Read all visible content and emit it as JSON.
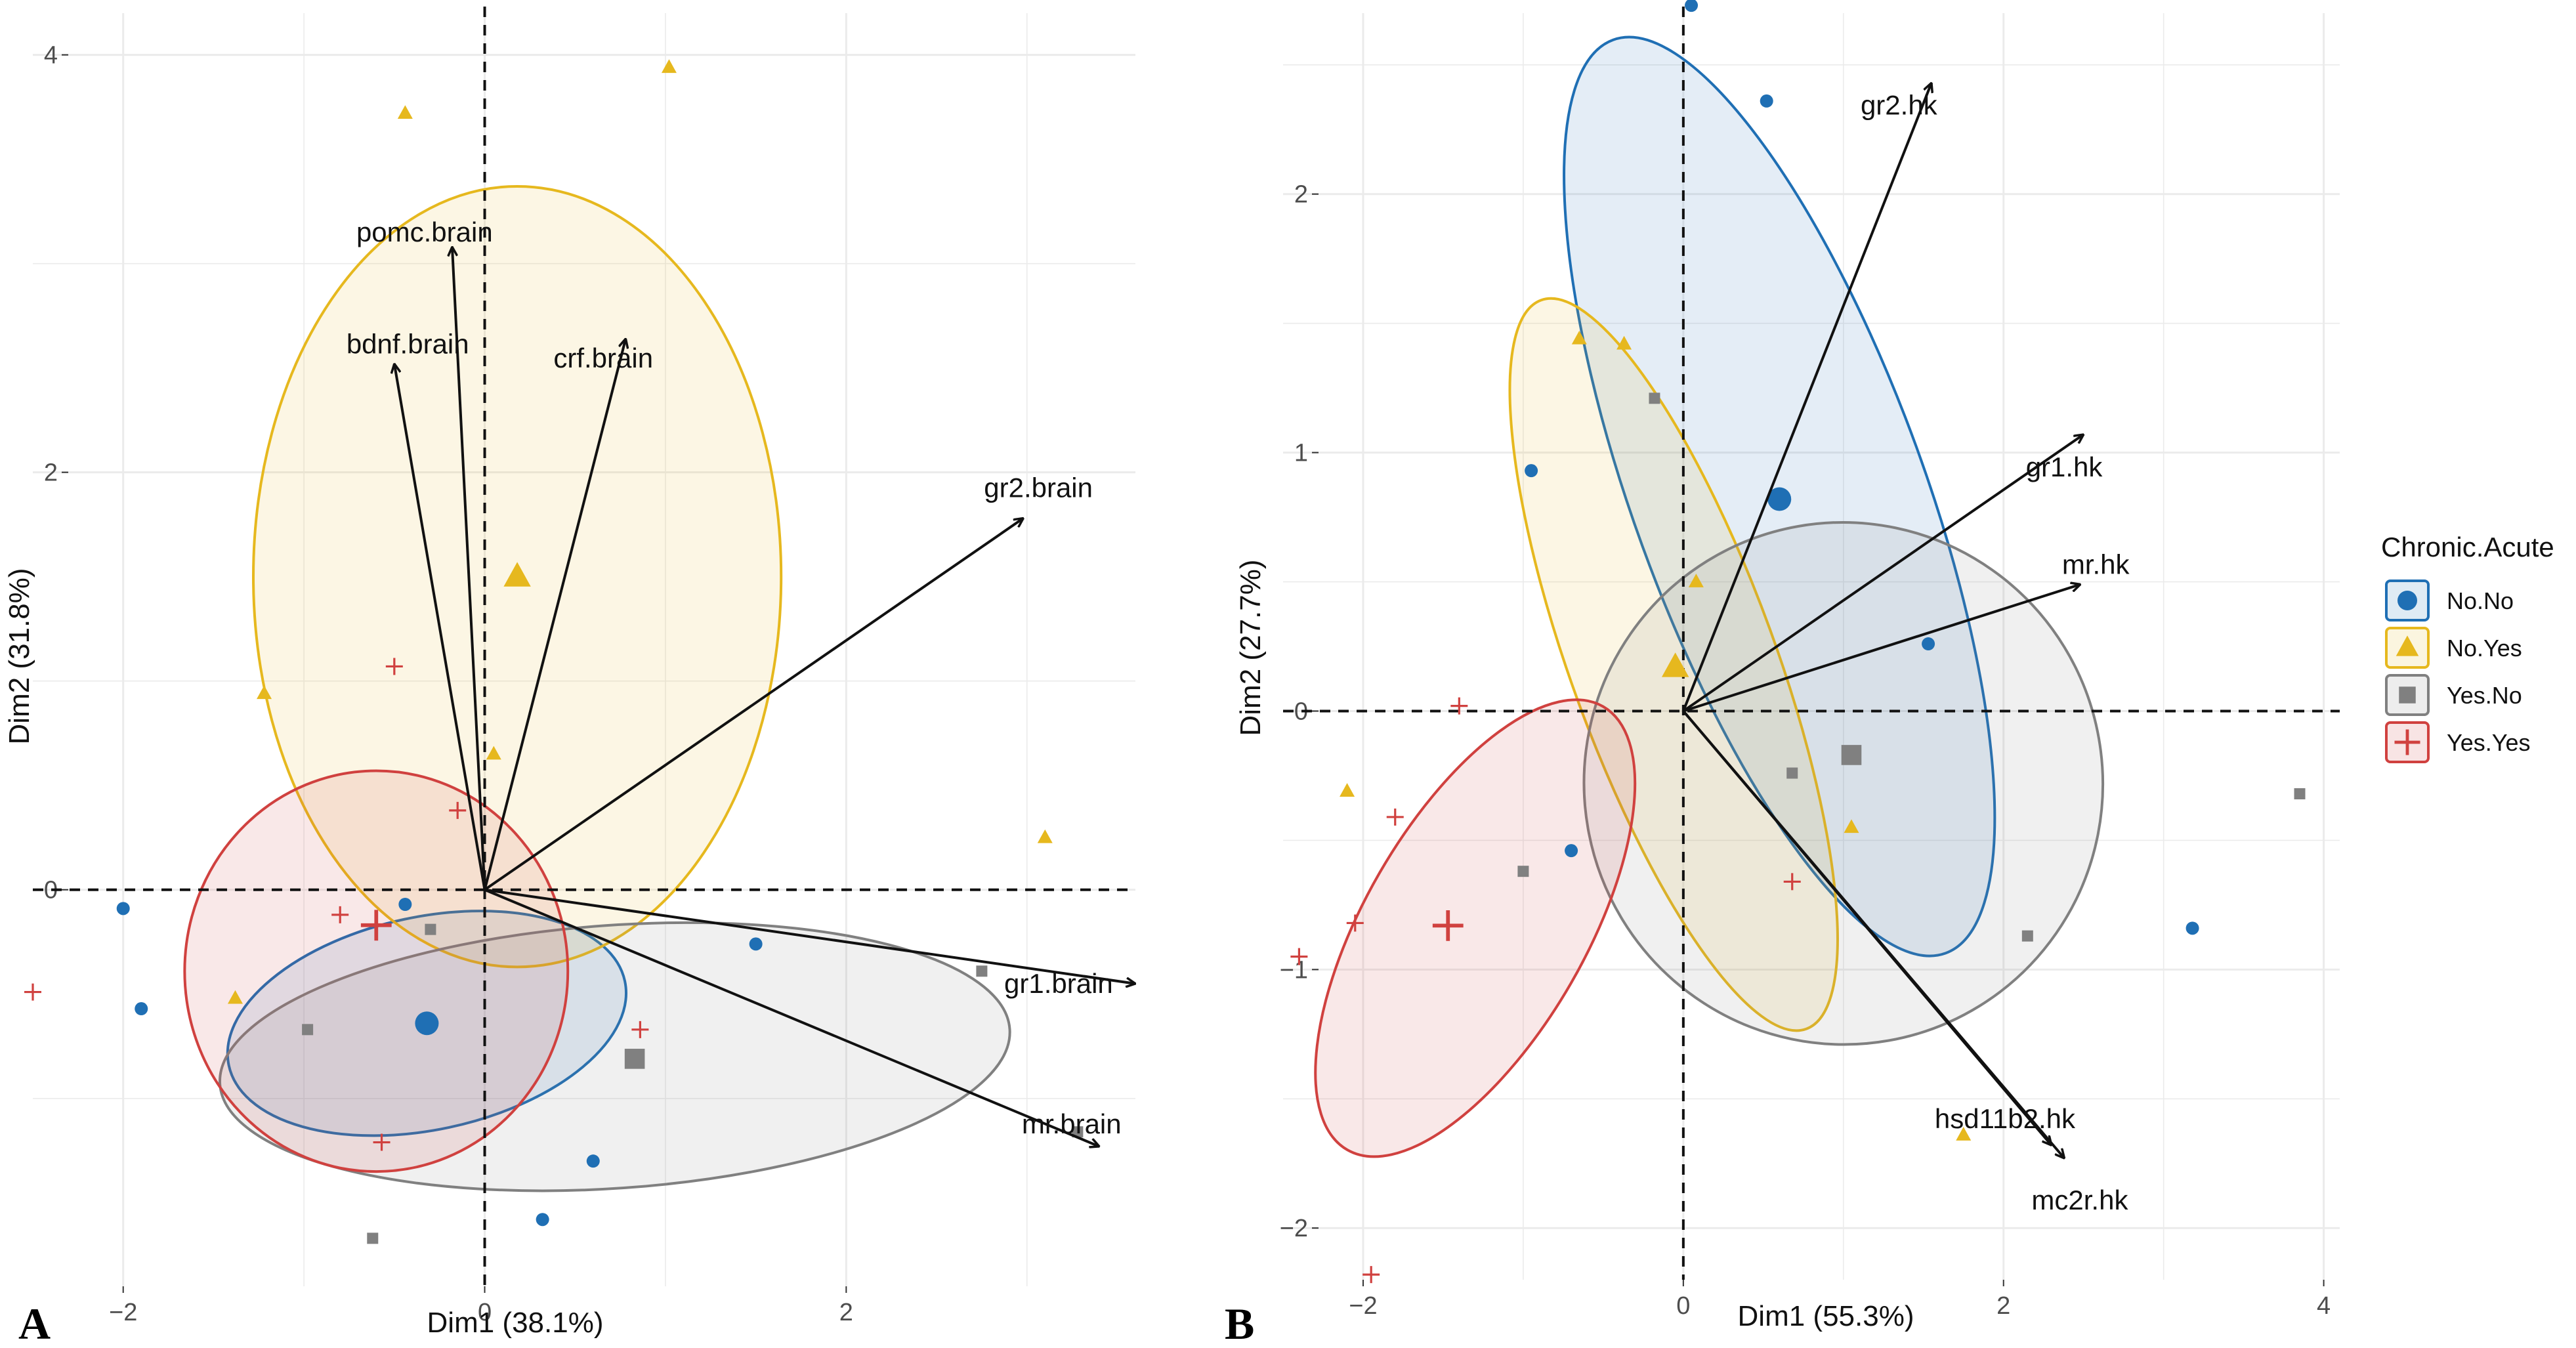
{
  "colors": {
    "No.No": "#1f6fb4",
    "No.Yes": "#e6b81e",
    "Yes.No": "#808080",
    "Yes.Yes": "#d0413f",
    "grid": "#ebebeb",
    "arrow": "#111111"
  },
  "legend": {
    "title": "Chronic.Acute",
    "items": [
      {
        "group": "No.No",
        "label": "No.No",
        "shape": "circle"
      },
      {
        "group": "No.Yes",
        "label": "No.Yes",
        "shape": "triangle"
      },
      {
        "group": "Yes.No",
        "label": "Yes.No",
        "shape": "square"
      },
      {
        "group": "Yes.Yes",
        "label": "Yes.Yes",
        "shape": "plus"
      }
    ]
  },
  "chart_data": [
    {
      "type": "scatter",
      "subtype": "pca-biplot",
      "panel": "A",
      "xlabel": "Dim1 (38.1%)",
      "ylabel": "Dim2 (31.8%)",
      "xlim": [
        -2.5,
        3.6
      ],
      "ylim": [
        -1.9,
        4.2
      ],
      "xticks": [
        -2,
        0,
        2
      ],
      "yticks": [
        0,
        2,
        4
      ],
      "xtick_labels": [
        "−2",
        "0",
        "2"
      ],
      "ytick_labels": [
        "0",
        "2",
        "4"
      ],
      "variables": [
        {
          "name": "pomc.brain",
          "x": -0.18,
          "y": 3.08
        },
        {
          "name": "bdnf.brain",
          "x": -0.5,
          "y": 2.52
        },
        {
          "name": "crf.brain",
          "x": 0.78,
          "y": 2.64
        },
        {
          "name": "gr2.brain",
          "x": 2.98,
          "y": 1.78
        },
        {
          "name": "gr1.brain",
          "x": 3.6,
          "y": -0.45
        },
        {
          "name": "mr.brain",
          "x": 3.4,
          "y": -1.23
        }
      ],
      "points": [
        {
          "group": "No.No",
          "x": -2.0,
          "y": -0.09
        },
        {
          "group": "No.No",
          "x": -1.9,
          "y": -0.57
        },
        {
          "group": "No.No",
          "x": -0.44,
          "y": -0.07
        },
        {
          "group": "No.No",
          "x": 1.5,
          "y": -0.26
        },
        {
          "group": "No.No",
          "x": 0.6,
          "y": -1.3
        },
        {
          "group": "No.No",
          "x": 0.32,
          "y": -1.58
        },
        {
          "group": "No.Yes",
          "x": -0.44,
          "y": 3.72
        },
        {
          "group": "No.Yes",
          "x": 1.02,
          "y": 3.94
        },
        {
          "group": "No.Yes",
          "x": -1.22,
          "y": 0.94
        },
        {
          "group": "No.Yes",
          "x": 0.05,
          "y": 0.65
        },
        {
          "group": "No.Yes",
          "x": -1.38,
          "y": -0.52
        },
        {
          "group": "No.Yes",
          "x": 3.1,
          "y": 0.25
        },
        {
          "group": "Yes.No",
          "x": -0.3,
          "y": -0.19
        },
        {
          "group": "Yes.No",
          "x": -0.98,
          "y": -0.67
        },
        {
          "group": "Yes.No",
          "x": 2.75,
          "y": -0.39
        },
        {
          "group": "Yes.No",
          "x": 3.28,
          "y": -1.16
        },
        {
          "group": "Yes.No",
          "x": -0.62,
          "y": -1.67
        },
        {
          "group": "Yes.Yes",
          "x": -2.5,
          "y": -0.49
        },
        {
          "group": "Yes.Yes",
          "x": -0.5,
          "y": 1.07
        },
        {
          "group": "Yes.Yes",
          "x": -0.15,
          "y": 0.38
        },
        {
          "group": "Yes.Yes",
          "x": -0.8,
          "y": -0.12
        },
        {
          "group": "Yes.Yes",
          "x": 0.86,
          "y": -0.67
        },
        {
          "group": "Yes.Yes",
          "x": -0.57,
          "y": -1.21
        }
      ],
      "centroids": [
        {
          "group": "No.No",
          "x": -0.32,
          "y": -0.64
        },
        {
          "group": "No.Yes",
          "x": 0.18,
          "y": 1.5
        },
        {
          "group": "Yes.No",
          "x": 0.83,
          "y": -0.81
        },
        {
          "group": "Yes.Yes",
          "x": -0.6,
          "y": -0.17
        }
      ],
      "ellipses": [
        {
          "group": "No.No",
          "cx": -0.32,
          "cy": -0.64,
          "rx": 1.12,
          "ry": 0.51,
          "angle": -12
        },
        {
          "group": "No.Yes",
          "cx": 0.18,
          "cy": 1.5,
          "rx": 1.46,
          "ry": 1.87,
          "angle": 0
        },
        {
          "group": "Yes.No",
          "cx": 0.72,
          "cy": -0.8,
          "rx": 2.19,
          "ry": 0.63,
          "angle": -4
        },
        {
          "group": "Yes.Yes",
          "cx": -0.6,
          "cy": -0.39,
          "rx": 1.06,
          "ry": 0.96,
          "angle": 0
        }
      ]
    },
    {
      "type": "scatter",
      "subtype": "pca-biplot",
      "panel": "B",
      "xlabel": "Dim1 (55.3%)",
      "ylabel": "Dim2 (27.7%)",
      "xlim": [
        -2.5,
        4.1
      ],
      "ylim": [
        -2.2,
        2.7
      ],
      "xticks": [
        -2,
        0,
        2,
        4
      ],
      "yticks": [
        -2,
        -1,
        0,
        1,
        2
      ],
      "xtick_labels": [
        "−2",
        "0",
        "2",
        "4"
      ],
      "ytick_labels": [
        "−2",
        "−1",
        "0",
        "1",
        "2"
      ],
      "variables": [
        {
          "name": "gr2.hk",
          "x": 1.55,
          "y": 2.43
        },
        {
          "name": "gr1.hk",
          "x": 2.5,
          "y": 1.07
        },
        {
          "name": "mr.hk",
          "x": 2.48,
          "y": 0.49
        },
        {
          "name": "hsd11b2.hk",
          "x": 2.3,
          "y": -1.68
        },
        {
          "name": "mc2r.hk",
          "x": 2.38,
          "y": -1.73
        }
      ],
      "points": [
        {
          "group": "No.No",
          "x": 0.05,
          "y": 2.73
        },
        {
          "group": "No.No",
          "x": 0.52,
          "y": 2.36
        },
        {
          "group": "No.No",
          "x": -0.95,
          "y": 0.93
        },
        {
          "group": "No.No",
          "x": 1.53,
          "y": 0.26
        },
        {
          "group": "No.No",
          "x": -0.7,
          "y": -0.54
        },
        {
          "group": "No.No",
          "x": 3.18,
          "y": -0.84
        },
        {
          "group": "No.Yes",
          "x": -0.65,
          "y": 1.44
        },
        {
          "group": "No.Yes",
          "x": -0.37,
          "y": 1.42
        },
        {
          "group": "No.Yes",
          "x": 0.08,
          "y": 0.5
        },
        {
          "group": "No.Yes",
          "x": -2.1,
          "y": -0.31
        },
        {
          "group": "No.Yes",
          "x": 1.05,
          "y": -0.45
        },
        {
          "group": "No.Yes",
          "x": 1.75,
          "y": -1.64
        },
        {
          "group": "Yes.No",
          "x": -0.18,
          "y": 1.21
        },
        {
          "group": "Yes.No",
          "x": 0.68,
          "y": -0.24
        },
        {
          "group": "Yes.No",
          "x": -1.0,
          "y": -0.62
        },
        {
          "group": "Yes.No",
          "x": 2.15,
          "y": -0.87
        },
        {
          "group": "Yes.No",
          "x": 3.85,
          "y": -0.32
        },
        {
          "group": "Yes.Yes",
          "x": -1.4,
          "y": 0.02
        },
        {
          "group": "Yes.Yes",
          "x": -1.8,
          "y": -0.41
        },
        {
          "group": "Yes.Yes",
          "x": -2.05,
          "y": -0.82
        },
        {
          "group": "Yes.Yes",
          "x": -2.4,
          "y": -0.95
        },
        {
          "group": "Yes.Yes",
          "x": 0.68,
          "y": -0.66
        },
        {
          "group": "Yes.Yes",
          "x": -1.95,
          "y": -2.18
        }
      ],
      "centroids": [
        {
          "group": "No.No",
          "x": 0.6,
          "y": 0.82
        },
        {
          "group": "No.Yes",
          "x": -0.05,
          "y": 0.17
        },
        {
          "group": "Yes.No",
          "x": 1.05,
          "y": -0.17
        },
        {
          "group": "Yes.Yes",
          "x": -1.47,
          "y": -0.83
        }
      ],
      "ellipses": [
        {
          "group": "No.No",
          "cx": 0.6,
          "cy": 0.83,
          "rx": 0.91,
          "ry": 1.88,
          "angle": -20
        },
        {
          "group": "No.Yes",
          "cx": -0.06,
          "cy": 0.18,
          "rx": 0.64,
          "ry": 1.5,
          "angle": -20
        },
        {
          "group": "Yes.No",
          "cx": 1.0,
          "cy": -0.28,
          "rx": 1.62,
          "ry": 1.01,
          "angle": -10
        },
        {
          "group": "Yes.Yes",
          "cx": -1.3,
          "cy": -0.84,
          "rx": 0.69,
          "ry": 0.99,
          "angle": 30
        }
      ]
    }
  ]
}
